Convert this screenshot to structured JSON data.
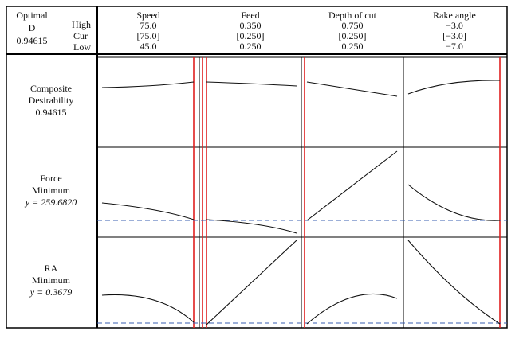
{
  "header": {
    "optimal": "Optimal",
    "d_label": "D",
    "d_value": "0.94615",
    "high": "High",
    "cur": "Cur",
    "low": "Low"
  },
  "factors": [
    {
      "name": "Speed",
      "high": "75.0",
      "cur": "[75.0]",
      "low": "45.0"
    },
    {
      "name": "Feed",
      "high": "0.350",
      "cur": "[0.250]",
      "low": "0.250"
    },
    {
      "name": "Depth of cut",
      "high": "0.750",
      "cur": "[0.250]",
      "low": "0.250"
    },
    {
      "name": "Rake angle",
      "high": "−3.0",
      "cur": "[−3.0]",
      "low": "−7.0"
    }
  ],
  "responses": [
    {
      "lines": [
        "Composite",
        "Desirability",
        "0.94615"
      ]
    },
    {
      "lines": [
        "Force",
        "Minimum",
        "y = 259.6820"
      ]
    },
    {
      "lines": [
        "RA",
        "Minimum",
        "y = 0.3679"
      ]
    }
  ]
}
